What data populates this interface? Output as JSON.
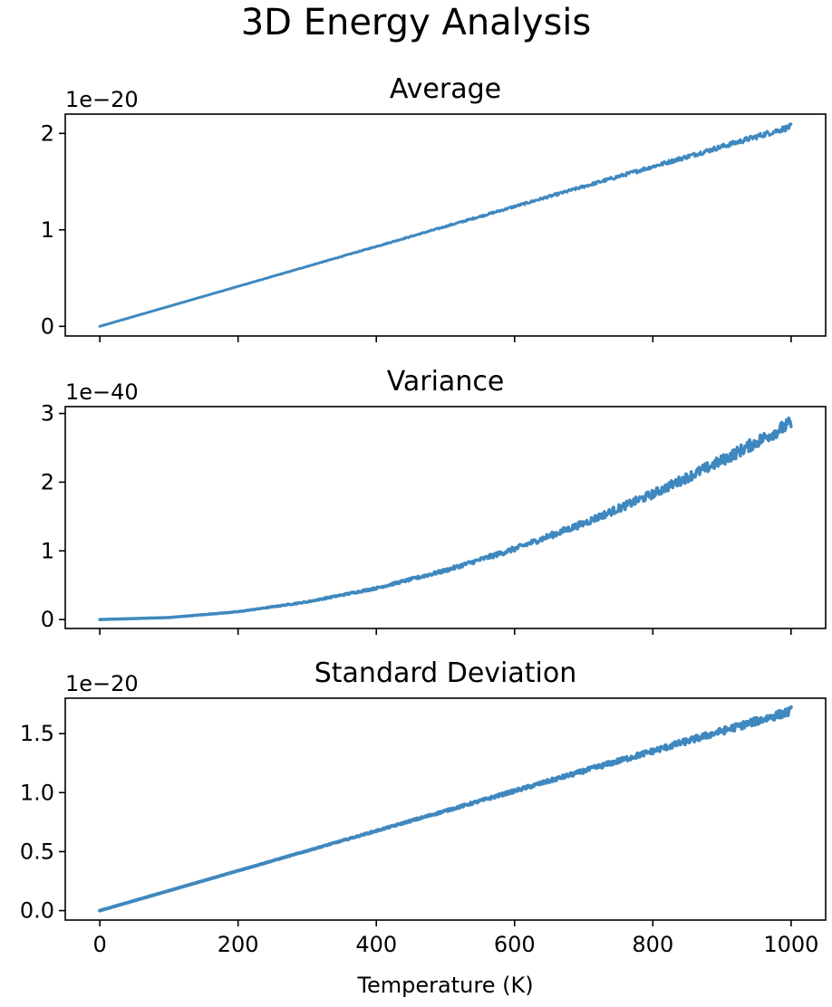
{
  "figure": {
    "title": "3D Energy Analysis"
  },
  "colors": {
    "series": "#3f88bf",
    "axes": "#000000",
    "background": "#ffffff"
  },
  "chart_data": [
    {
      "type": "line",
      "title": "Average",
      "xlabel": "",
      "ylabel": "",
      "offset_text": "1e−20",
      "xlim": [
        -50,
        1050
      ],
      "ylim": [
        -0.1,
        2.2
      ],
      "xticks": [
        0,
        200,
        400,
        600,
        800,
        1000
      ],
      "xtick_labels": [],
      "yticks": [
        0,
        1,
        2
      ],
      "ytick_labels": [
        "0",
        "1",
        "2"
      ],
      "grid": false,
      "series": [
        {
          "x": [
            0,
            100,
            200,
            300,
            400,
            500,
            600,
            700,
            800,
            900,
            1000
          ],
          "y": [
            0.0,
            0.207,
            0.414,
            0.621,
            0.828,
            1.035,
            1.242,
            1.449,
            1.656,
            1.863,
            2.07
          ],
          "noise_band": 0.03
        }
      ]
    },
    {
      "type": "line",
      "title": "Variance",
      "xlabel": "",
      "ylabel": "",
      "offset_text": "1e−40",
      "xlim": [
        -50,
        1050
      ],
      "ylim": [
        -0.13,
        3.1
      ],
      "xticks": [
        0,
        200,
        400,
        600,
        800,
        1000
      ],
      "xtick_labels": [],
      "yticks": [
        0,
        1,
        2,
        3
      ],
      "ytick_labels": [
        "0",
        "1",
        "2",
        "3"
      ],
      "grid": false,
      "series": [
        {
          "x": [
            0,
            100,
            200,
            300,
            400,
            500,
            600,
            700,
            800,
            900,
            1000
          ],
          "y": [
            0.0,
            0.029,
            0.114,
            0.257,
            0.457,
            0.714,
            1.028,
            1.4,
            1.828,
            2.314,
            2.856
          ],
          "noise_band": 0.1
        }
      ]
    },
    {
      "type": "line",
      "title": "Standard Deviation",
      "xlabel": "Temperature (K)",
      "ylabel": "",
      "offset_text": "1e−20",
      "xlim": [
        -50,
        1050
      ],
      "ylim": [
        -0.08,
        1.8
      ],
      "xticks": [
        0,
        200,
        400,
        600,
        800,
        1000
      ],
      "xtick_labels": [
        "0",
        "200",
        "400",
        "600",
        "800",
        "1000"
      ],
      "yticks": [
        0.0,
        0.5,
        1.0,
        1.5
      ],
      "ytick_labels": [
        "0.0",
        "0.5",
        "1.0",
        "1.5"
      ],
      "grid": false,
      "series": [
        {
          "x": [
            0,
            100,
            200,
            300,
            400,
            500,
            600,
            700,
            800,
            900,
            1000
          ],
          "y": [
            0.0,
            0.169,
            0.338,
            0.507,
            0.676,
            0.845,
            1.014,
            1.183,
            1.352,
            1.521,
            1.69
          ],
          "noise_band": 0.035
        }
      ]
    }
  ]
}
